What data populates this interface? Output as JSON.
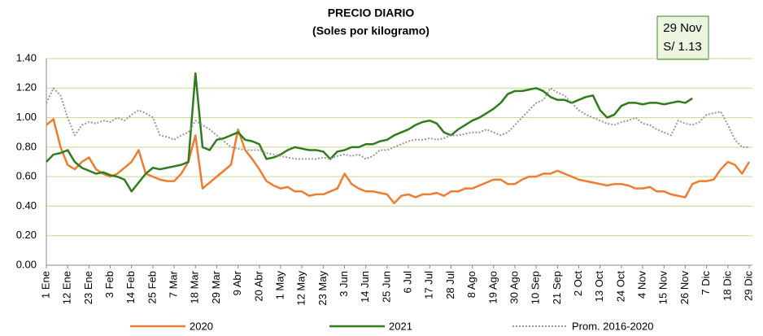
{
  "chart_data": {
    "type": "line",
    "title": "PRECIO DIARIO",
    "subtitle": "(Soles por kilogramo)",
    "annotation": [
      "29 Nov",
      "S/ 1.13"
    ],
    "categories": [
      "1 Ene",
      null,
      null,
      "12 Ene",
      null,
      null,
      "23 Ene",
      null,
      null,
      "3 Feb",
      null,
      null,
      "14 Feb",
      null,
      null,
      "25 Feb",
      null,
      null,
      "7 Mar",
      null,
      null,
      "18 Mar",
      null,
      null,
      "29 Mar",
      null,
      null,
      "9 Abr",
      null,
      null,
      "20 Abr",
      null,
      null,
      "1 May",
      null,
      null,
      "12 May",
      null,
      null,
      "23 May",
      null,
      null,
      "3 Jun",
      null,
      null,
      "14 Jun",
      null,
      null,
      "25 Jun",
      null,
      null,
      "6 Jul",
      null,
      null,
      "17 Jul",
      null,
      null,
      "28 Jul",
      null,
      null,
      "8 Ago",
      null,
      null,
      "19 Ago",
      null,
      null,
      "30 Ago",
      null,
      null,
      "10 Sep",
      null,
      null,
      "21 Sep",
      null,
      null,
      "2 Oct",
      null,
      null,
      "13 Oct",
      null,
      null,
      "24 Oct",
      null,
      null,
      "4 Nov",
      null,
      null,
      "15 Nov",
      null,
      null,
      "26 Nov",
      null,
      null,
      "7 Dic",
      null,
      null,
      "18 Dic",
      null,
      null,
      "29 Dic"
    ],
    "series": [
      {
        "name": "2020",
        "color": "#ed7d31",
        "style": "solid",
        "values": [
          0.95,
          0.99,
          0.8,
          0.68,
          0.65,
          0.7,
          0.73,
          0.65,
          0.62,
          0.6,
          0.62,
          0.66,
          0.7,
          0.78,
          0.62,
          0.6,
          0.58,
          0.57,
          0.57,
          0.62,
          0.7,
          0.88,
          0.52,
          0.56,
          0.6,
          0.64,
          0.68,
          0.92,
          0.78,
          0.72,
          0.65,
          0.57,
          0.54,
          0.52,
          0.53,
          0.5,
          0.5,
          0.47,
          0.48,
          0.48,
          0.5,
          0.52,
          0.62,
          0.55,
          0.52,
          0.5,
          0.5,
          0.49,
          0.48,
          0.42,
          0.47,
          0.48,
          0.46,
          0.48,
          0.48,
          0.49,
          0.47,
          0.5,
          0.5,
          0.52,
          0.52,
          0.54,
          0.56,
          0.58,
          0.58,
          0.55,
          0.55,
          0.58,
          0.6,
          0.6,
          0.62,
          0.62,
          0.64,
          0.62,
          0.6,
          0.58,
          0.57,
          0.56,
          0.55,
          0.54,
          0.55,
          0.55,
          0.54,
          0.52,
          0.52,
          0.53,
          0.5,
          0.5,
          0.48,
          0.47,
          0.46,
          0.55,
          0.57,
          0.57,
          0.58,
          0.65,
          0.7,
          0.68,
          0.62,
          0.7
        ]
      },
      {
        "name": "2021",
        "color": "#2e7d1a",
        "style": "solid",
        "values": [
          0.7,
          0.75,
          0.76,
          0.78,
          0.7,
          0.66,
          0.64,
          0.62,
          0.63,
          0.61,
          0.6,
          0.58,
          0.5,
          0.56,
          0.62,
          0.66,
          0.65,
          0.66,
          0.67,
          0.68,
          0.7,
          1.3,
          0.8,
          0.78,
          0.85,
          0.86,
          0.88,
          0.9,
          0.85,
          0.84,
          0.82,
          0.72,
          0.73,
          0.75,
          0.78,
          0.8,
          0.79,
          0.78,
          0.78,
          0.77,
          0.72,
          0.77,
          0.78,
          0.8,
          0.8,
          0.82,
          0.82,
          0.84,
          0.85,
          0.88,
          0.9,
          0.92,
          0.95,
          0.97,
          0.98,
          0.96,
          0.9,
          0.88,
          0.92,
          0.95,
          0.98,
          1.0,
          1.03,
          1.06,
          1.1,
          1.16,
          1.18,
          1.18,
          1.19,
          1.2,
          1.18,
          1.14,
          1.12,
          1.12,
          1.1,
          1.12,
          1.14,
          1.15,
          1.05,
          1.0,
          1.02,
          1.08,
          1.1,
          1.1,
          1.09,
          1.1,
          1.1,
          1.09,
          1.1,
          1.11,
          1.1,
          1.13,
          null,
          null,
          null,
          null,
          null,
          null,
          null,
          null
        ]
      },
      {
        "name": "Prom. 2016-2020",
        "color": "#999999",
        "style": "dotted",
        "values": [
          1.1,
          1.2,
          1.15,
          1.0,
          0.88,
          0.95,
          0.97,
          0.96,
          0.98,
          0.97,
          1.0,
          0.98,
          1.02,
          1.05,
          1.03,
          1.0,
          0.88,
          0.87,
          0.85,
          0.88,
          0.9,
          0.98,
          0.95,
          0.92,
          0.88,
          0.84,
          0.8,
          0.79,
          0.78,
          0.78,
          0.78,
          0.76,
          0.75,
          0.74,
          0.73,
          0.72,
          0.72,
          0.72,
          0.72,
          0.73,
          0.72,
          0.74,
          0.75,
          0.74,
          0.75,
          0.72,
          0.74,
          0.78,
          0.78,
          0.8,
          0.82,
          0.84,
          0.85,
          0.85,
          0.86,
          0.85,
          0.86,
          0.88,
          0.88,
          0.89,
          0.9,
          0.9,
          0.92,
          0.9,
          0.88,
          0.9,
          0.95,
          1.0,
          1.05,
          1.1,
          1.12,
          1.2,
          1.17,
          1.15,
          1.1,
          1.05,
          1.02,
          1.0,
          0.98,
          0.96,
          0.95,
          0.97,
          0.98,
          1.0,
          0.96,
          0.95,
          0.92,
          0.9,
          0.88,
          0.98,
          0.96,
          0.95,
          0.97,
          1.02,
          1.03,
          1.04,
          0.95,
          0.85,
          0.8,
          0.8
        ]
      }
    ],
    "ylim": [
      0,
      1.4
    ],
    "yticks": [
      {
        "value": 0,
        "label": "0.00"
      },
      {
        "value": 0.2,
        "label": "0.20"
      },
      {
        "value": 0.4,
        "label": "0.40"
      },
      {
        "value": 0.6,
        "label": "0.60"
      },
      {
        "value": 0.8,
        "label": "0.80"
      },
      {
        "value": 1,
        "label": "1.00"
      },
      {
        "value": 1.2,
        "label": "1.20"
      },
      {
        "value": 1.4,
        "label": "1.40"
      }
    ],
    "grid": true,
    "legend": "bottom"
  }
}
